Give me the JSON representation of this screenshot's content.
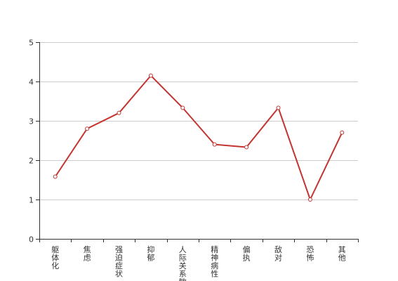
{
  "chart_data": {
    "type": "line",
    "categories": [
      "躯体化",
      "焦虑",
      "强迫症状",
      "抑郁",
      "人际关系敏感",
      "精神病性",
      "偏执",
      "敌对",
      "恐怖",
      "其他"
    ],
    "values": [
      1.58,
      2.8,
      3.2,
      4.15,
      3.33,
      2.4,
      2.33,
      3.33,
      1.0,
      2.7
    ],
    "ylim": [
      0,
      5
    ],
    "yticks": [
      0,
      1,
      2,
      3,
      4,
      5
    ],
    "grid": true,
    "title": "",
    "xlabel": "",
    "ylabel": "",
    "line_color": "#c23531",
    "marker_fill": "#ffffff"
  }
}
